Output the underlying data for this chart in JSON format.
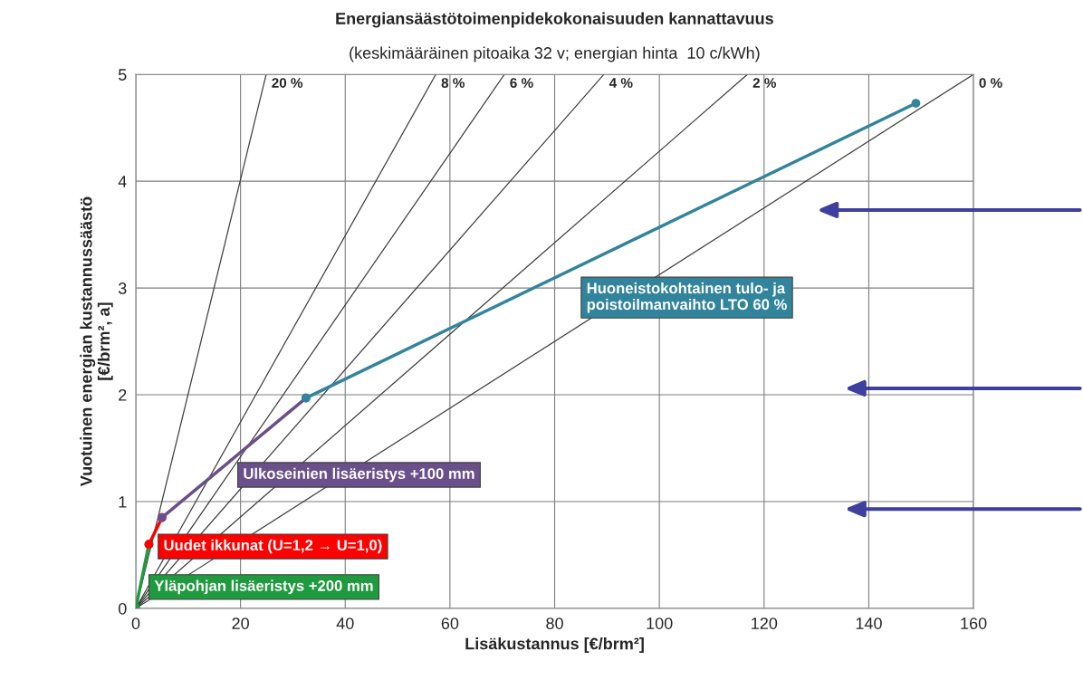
{
  "chart_data": {
    "type": "line",
    "title": "Energiansäästötoimenpidekokonaisuuden kannattavuus",
    "subtitle": "(keskimääräinen pitoaika 32 v; energian hinta  10 c/kWh)",
    "xlabel": "Lisäkustannus [€/brm²]",
    "ylabel": "Vuotuinen energian kustannussäästö\n[€/brm², a]",
    "xlim": [
      0,
      160
    ],
    "ylim": [
      0,
      5
    ],
    "xticks": [
      0,
      20,
      40,
      60,
      80,
      100,
      120,
      140,
      160
    ],
    "yticks": [
      0,
      1,
      2,
      3,
      4,
      5
    ],
    "grid": true,
    "marker": "circle",
    "series": [
      {
        "name": "20 %",
        "color": "#404040",
        "x": [
          0,
          24.9
        ],
        "values": [
          0,
          5
        ],
        "marker": "none"
      },
      {
        "name": "8 %",
        "color": "#404040",
        "x": [
          0,
          57.3
        ],
        "values": [
          0,
          5
        ],
        "marker": "none"
      },
      {
        "name": "6 %",
        "color": "#404040",
        "x": [
          0,
          70.4
        ],
        "values": [
          0,
          5
        ],
        "marker": "none"
      },
      {
        "name": "4 %",
        "color": "#404040",
        "x": [
          0,
          89.4
        ],
        "values": [
          0,
          5
        ],
        "marker": "none"
      },
      {
        "name": "2 %",
        "color": "#404040",
        "x": [
          0,
          116.8
        ],
        "values": [
          0,
          5
        ],
        "marker": "none"
      },
      {
        "name": "0 %",
        "color": "#404040",
        "x": [
          0,
          160
        ],
        "values": [
          0,
          5
        ],
        "marker": "none"
      },
      {
        "color": "#1f9a3f",
        "x": [
          0,
          2.5
        ],
        "values": [
          0,
          0.6
        ]
      },
      {
        "color": "#ff0000",
        "x": [
          2.5,
          5
        ],
        "values": [
          0.6,
          0.85
        ]
      },
      {
        "color": "#6a4f8a",
        "x": [
          5,
          32.5
        ],
        "values": [
          0.85,
          1.97
        ]
      },
      {
        "color": "#31849b",
        "x": [
          32.5,
          149
        ],
        "values": [
          1.97,
          4.73
        ]
      }
    ],
    "annotations": [
      "Yläpohjan lisäeristys +200 mm",
      "Uudet ikkunat (U=1,2 → U=1,0)",
      "Ulkoseinien lisäeristys +100 mm",
      "Huoneistokohtainen tulo- ja\npoistoilmanvaihto LTO 60 %"
    ]
  }
}
